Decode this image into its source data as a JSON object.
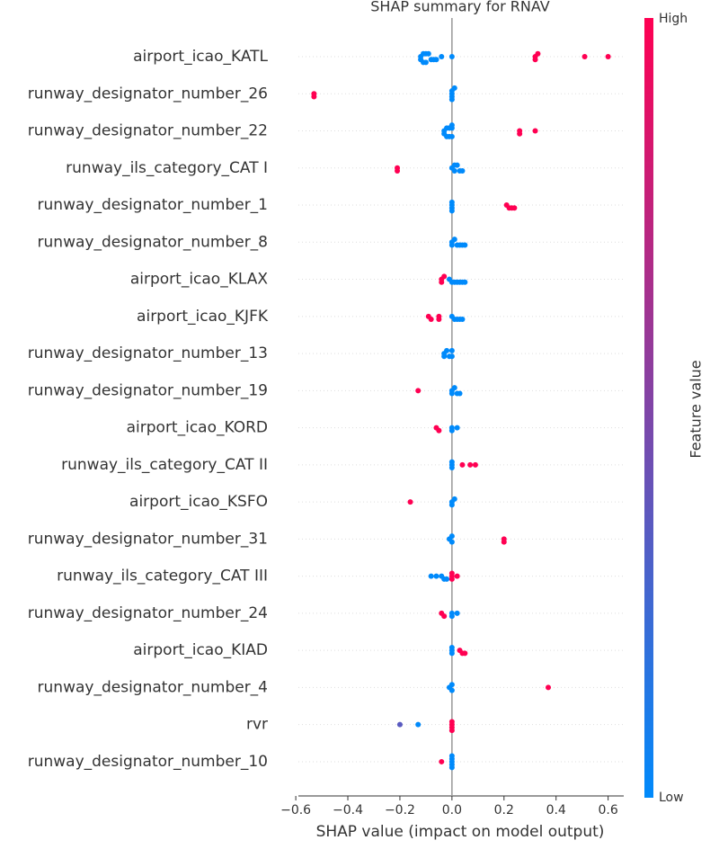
{
  "chart_data": {
    "type": "beeswarm",
    "title": "SHAP summary for RNAV",
    "x_label": "SHAP value (impact on model output)",
    "colorbar_label": "Feature value",
    "colorbar_high": "High",
    "colorbar_low": "Low",
    "colormap": [
      "#008afb",
      "#ff0052"
    ],
    "xlim": [
      -0.59,
      0.66
    ],
    "xticks": [
      {
        "value": -0.6,
        "label": "−0.6"
      },
      {
        "value": -0.4,
        "label": "−0.4"
      },
      {
        "value": -0.2,
        "label": "−0.2"
      },
      {
        "value": 0,
        "label": "0.0"
      },
      0.2,
      0.4,
      0.6
    ],
    "series": [
      {
        "name": "airport_icao_KATL",
        "values": [
          -0.12,
          -0.12,
          -0.11,
          -0.11,
          -0.1,
          -0.1,
          -0.09,
          -0.08,
          -0.07,
          -0.06,
          -0.04,
          0.0,
          0.32,
          0.32,
          0.33,
          0.51,
          0.6
        ],
        "levels": [
          0,
          0,
          0,
          0,
          0,
          0,
          0,
          0,
          0,
          0,
          0,
          0,
          1,
          1,
          1,
          1,
          1
        ]
      },
      {
        "name": "runway_designator_number_26",
        "values": [
          -0.53,
          -0.53,
          0.0,
          0.0,
          0.0,
          0.0,
          0.01
        ],
        "levels": [
          1,
          1,
          0,
          0,
          0,
          0,
          0
        ]
      },
      {
        "name": "runway_designator_number_22",
        "values": [
          -0.03,
          -0.03,
          -0.02,
          -0.02,
          -0.01,
          -0.01,
          0.0,
          0.0,
          0.0,
          0.32,
          0.26,
          0.26
        ],
        "levels": [
          0,
          0,
          0,
          0,
          0,
          0,
          0,
          0,
          0,
          1,
          1,
          1
        ]
      },
      {
        "name": "runway_ils_category_CAT I",
        "values": [
          -0.21,
          -0.21,
          0.0,
          0.01,
          0.01,
          0.02,
          0.03,
          0.04
        ],
        "levels": [
          1,
          1,
          0,
          0,
          0,
          0,
          0,
          0
        ]
      },
      {
        "name": "runway_designator_number_1",
        "values": [
          0.0,
          0.0,
          0.0,
          0.0,
          0.21,
          0.22,
          0.23,
          0.24
        ],
        "levels": [
          0,
          0,
          0,
          0,
          1,
          1,
          1,
          1
        ]
      },
      {
        "name": "runway_designator_number_8",
        "values": [
          0.0,
          0.0,
          0.01,
          0.02,
          0.03,
          0.04,
          0.05
        ],
        "levels": [
          0,
          0,
          0,
          0,
          0,
          0,
          0
        ]
      },
      {
        "name": "airport_icao_KLAX",
        "values": [
          -0.04,
          -0.04,
          -0.03,
          -0.01,
          0.0,
          0.01,
          0.02,
          0.03,
          0.04,
          0.05
        ],
        "levels": [
          1,
          1,
          1,
          0,
          0,
          0,
          0,
          0,
          0,
          0
        ]
      },
      {
        "name": "airport_icao_KJFK",
        "values": [
          -0.09,
          -0.08,
          -0.05,
          -0.05,
          0.0,
          0.01,
          0.02,
          0.03,
          0.04
        ],
        "levels": [
          1,
          1,
          1,
          1,
          0,
          0,
          0,
          0,
          0
        ]
      },
      {
        "name": "runway_designator_number_13",
        "values": [
          -0.03,
          -0.03,
          -0.02,
          -0.01,
          0.0,
          0.0
        ],
        "levels": [
          0,
          0,
          0,
          0,
          0,
          0
        ]
      },
      {
        "name": "runway_designator_number_19",
        "values": [
          -0.13,
          0.0,
          0.0,
          0.01,
          0.02,
          0.03
        ],
        "levels": [
          1,
          0,
          0,
          0,
          0,
          0
        ]
      },
      {
        "name": "airport_icao_KORD",
        "values": [
          -0.06,
          -0.05,
          0.0,
          0.0,
          0.02
        ],
        "levels": [
          1,
          1,
          0,
          0,
          0
        ]
      },
      {
        "name": "runway_ils_category_CAT II",
        "values": [
          0.0,
          0.0,
          0.0,
          0.04,
          0.07,
          0.09
        ],
        "levels": [
          0,
          0,
          0,
          1,
          1,
          1
        ]
      },
      {
        "name": "airport_icao_KSFO",
        "values": [
          -0.16,
          0.0,
          0.0,
          0.01
        ],
        "levels": [
          1,
          0,
          0,
          0
        ]
      },
      {
        "name": "runway_designator_number_31",
        "values": [
          -0.01,
          0.0,
          0.0,
          0.2,
          0.2
        ],
        "levels": [
          0,
          0,
          0,
          1,
          1
        ]
      },
      {
        "name": "runway_ils_category_CAT III",
        "values": [
          -0.08,
          -0.06,
          -0.04,
          -0.03,
          -0.02,
          0.0,
          0.0,
          0.0,
          0.02
        ],
        "levels": [
          0,
          0,
          0,
          0,
          0,
          1,
          1,
          1,
          1
        ]
      },
      {
        "name": "runway_designator_number_24",
        "values": [
          -0.04,
          -0.03,
          0.0,
          0.0,
          0.02
        ],
        "levels": [
          1,
          1,
          0,
          0,
          0
        ]
      },
      {
        "name": "airport_icao_KIAD",
        "values": [
          0.0,
          0.0,
          0.0,
          0.03,
          0.04,
          0.05
        ],
        "levels": [
          0,
          0,
          0,
          1,
          1,
          1
        ]
      },
      {
        "name": "runway_designator_number_4",
        "values": [
          -0.01,
          0.0,
          0.0,
          0.37
        ],
        "levels": [
          0,
          0,
          0,
          1
        ]
      },
      {
        "name": "rvr",
        "values": [
          -0.2,
          -0.13,
          0.0,
          0.0,
          0.0,
          0.0
        ],
        "levels": [
          0.35,
          0,
          1,
          1,
          1,
          1
        ]
      },
      {
        "name": "runway_designator_number_10",
        "values": [
          -0.04,
          0.0,
          0.0,
          0.0,
          0.0,
          0.0
        ],
        "levels": [
          1,
          0,
          0,
          0,
          0,
          0
        ]
      }
    ]
  }
}
